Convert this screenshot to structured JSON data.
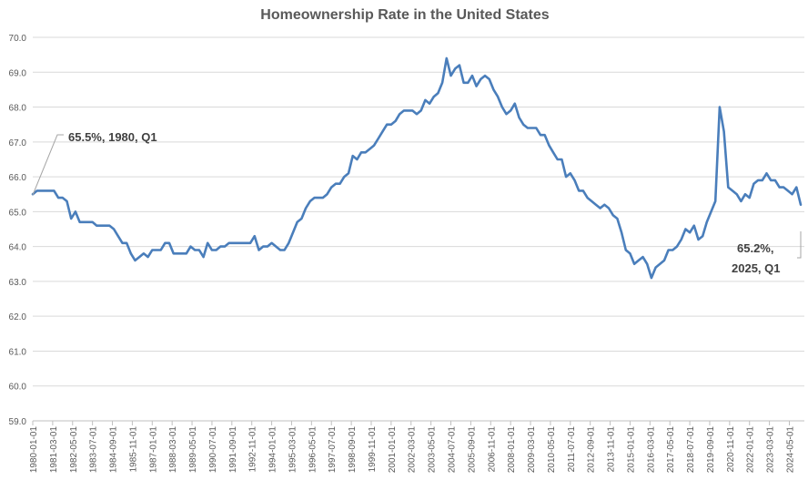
{
  "chart_data": {
    "type": "line",
    "title": "Homeownership Rate in the United States",
    "xlabel": "",
    "ylabel": "",
    "ylim": [
      59.0,
      70.0
    ],
    "y_ticks": [
      "59.0",
      "60.0",
      "61.0",
      "62.0",
      "63.0",
      "64.0",
      "65.0",
      "66.0",
      "67.0",
      "68.0",
      "69.0",
      "70.0"
    ],
    "grid": true,
    "legend": "none",
    "x_start": "1980-01-01",
    "x_frequency": "quarterly",
    "x_tick_labels": [
      "1980-01-01",
      "1981-03-01",
      "1982-05-01",
      "1983-07-01",
      "1984-09-01",
      "1985-11-01",
      "1987-01-01",
      "1988-03-01",
      "1989-05-01",
      "1990-07-01",
      "1991-09-01",
      "1992-11-01",
      "1994-01-01",
      "1995-03-01",
      "1996-05-01",
      "1997-07-01",
      "1998-09-01",
      "1999-11-01",
      "2001-01-01",
      "2002-03-01",
      "2003-05-01",
      "2004-07-01",
      "2005-09-01",
      "2006-11-01",
      "2008-01-01",
      "2009-03-01",
      "2010-05-01",
      "2011-07-01",
      "2012-09-01",
      "2013-11-01",
      "2015-01-01",
      "2016-03-01",
      "2017-05-01",
      "2018-07-01",
      "2019-09-01",
      "2020-11-01",
      "2022-01-01",
      "2023-03-01",
      "2024-05-01"
    ],
    "series": [
      {
        "name": "Homeownership Rate",
        "color": "#4a7ebb",
        "values": [
          65.5,
          65.6,
          65.6,
          65.6,
          65.6,
          65.6,
          65.4,
          65.4,
          65.3,
          64.8,
          65.0,
          64.7,
          64.7,
          64.7,
          64.7,
          64.6,
          64.6,
          64.6,
          64.6,
          64.5,
          64.3,
          64.1,
          64.1,
          63.8,
          63.6,
          63.7,
          63.8,
          63.7,
          63.9,
          63.9,
          63.9,
          64.1,
          64.1,
          63.8,
          63.8,
          63.8,
          63.8,
          64.0,
          63.9,
          63.9,
          63.7,
          64.1,
          63.9,
          63.9,
          64.0,
          64.0,
          64.1,
          64.1,
          64.1,
          64.1,
          64.1,
          64.1,
          64.3,
          63.9,
          64.0,
          64.0,
          64.1,
          64.0,
          63.9,
          63.9,
          64.1,
          64.4,
          64.7,
          64.8,
          65.1,
          65.3,
          65.4,
          65.4,
          65.4,
          65.5,
          65.7,
          65.8,
          65.8,
          66.0,
          66.1,
          66.6,
          66.5,
          66.7,
          66.7,
          66.8,
          66.9,
          67.1,
          67.3,
          67.5,
          67.5,
          67.6,
          67.8,
          67.9,
          67.9,
          67.9,
          67.8,
          67.9,
          68.2,
          68.1,
          68.3,
          68.4,
          68.7,
          69.4,
          68.9,
          69.1,
          69.2,
          68.7,
          68.7,
          68.9,
          68.6,
          68.8,
          68.9,
          68.8,
          68.5,
          68.3,
          68.0,
          67.8,
          67.9,
          68.1,
          67.7,
          67.5,
          67.4,
          67.4,
          67.4,
          67.2,
          67.2,
          66.9,
          66.7,
          66.5,
          66.5,
          66.0,
          66.1,
          65.9,
          65.6,
          65.6,
          65.4,
          65.3,
          65.2,
          65.1,
          65.2,
          65.1,
          64.9,
          64.8,
          64.4,
          63.9,
          63.8,
          63.5,
          63.6,
          63.7,
          63.5,
          63.1,
          63.4,
          63.5,
          63.6,
          63.9,
          63.9,
          64.0,
          64.2,
          64.5,
          64.4,
          64.6,
          64.2,
          64.3,
          64.7,
          65.0,
          65.3,
          68.0,
          67.3,
          65.7,
          65.6,
          65.5,
          65.3,
          65.5,
          65.4,
          65.8,
          65.9,
          65.9,
          66.1,
          65.9,
          65.9,
          65.7,
          65.7,
          65.6,
          65.5,
          65.7,
          65.2
        ]
      }
    ],
    "annotations": [
      {
        "text": "65.5%, 1980, Q1",
        "point_index": 0
      },
      {
        "lines": [
          "65.2%,",
          "2025, Q1"
        ],
        "point_index": 180
      }
    ]
  }
}
